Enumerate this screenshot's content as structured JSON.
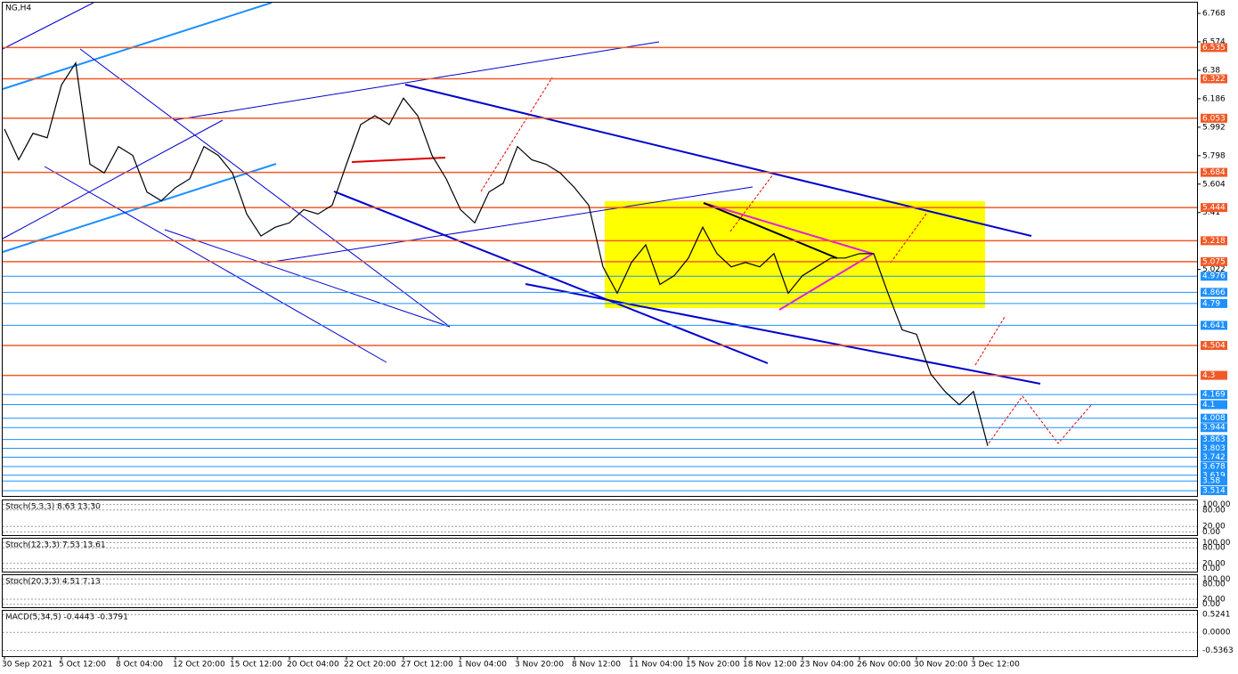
{
  "chart_data": {
    "type": "line",
    "title": "NG,H4",
    "color": "#000000",
    "categories": [
      "30 Sep 2021",
      null,
      null,
      null,
      "5 Oct 12:00",
      null,
      null,
      null,
      "8 Oct 04:00",
      null,
      null,
      null,
      "12 Oct 20:00",
      null,
      null,
      null,
      "15 Oct 12:00",
      null,
      null,
      null,
      "20 Oct 04:00",
      null,
      null,
      null,
      "22 Oct 20:00",
      null,
      null,
      null,
      "27 Oct 12:00",
      null,
      null,
      null,
      "1 Nov 04:00",
      null,
      null,
      null,
      "3 Nov 20:00",
      null,
      null,
      null,
      "8 Nov 12:00",
      null,
      null,
      null,
      "11 Nov 04:00",
      null,
      null,
      null,
      "15 Nov 20:00",
      null,
      null,
      null,
      "18 Nov 12:00",
      null,
      null,
      null,
      "23 Nov 04:00",
      null,
      null,
      null,
      "26 Nov 00:00",
      null,
      null,
      null,
      "30 Nov 20:00",
      null,
      null,
      null,
      "3 Dec 12:00",
      null
    ],
    "values": [
      5.98,
      5.77,
      5.95,
      5.92,
      6.28,
      6.43,
      5.74,
      5.68,
      5.86,
      5.8,
      5.55,
      5.49,
      5.58,
      5.64,
      5.86,
      5.8,
      5.68,
      5.4,
      5.25,
      5.31,
      5.34,
      5.43,
      5.4,
      5.46,
      5.74,
      6.01,
      6.07,
      6.01,
      6.19,
      6.07,
      5.8,
      5.64,
      5.43,
      5.34,
      5.55,
      5.61,
      5.86,
      5.77,
      5.74,
      5.68,
      5.58,
      5.46,
      5.04,
      4.86,
      5.07,
      5.19,
      4.92,
      4.98,
      5.1,
      5.31,
      5.13,
      5.04,
      5.07,
      5.04,
      5.13,
      4.86,
      4.98,
      5.04,
      5.1,
      5.1,
      5.13,
      5.13,
      4.86,
      4.61,
      4.58,
      4.31,
      4.19,
      4.1,
      4.19,
      3.82
    ],
    "ylim": [
      3.478,
      6.841
    ],
    "yticks": [
      6.768,
      6.574,
      6.38,
      6.186,
      5.992,
      5.798,
      5.604,
      5.41,
      5.022
    ],
    "levels": [
      {
        "value": 6.535,
        "color": "#f05a28"
      },
      {
        "value": 6.322,
        "color": "#f05a28"
      },
      {
        "value": 6.053,
        "color": "#f05a28"
      },
      {
        "value": 5.684,
        "color": "#f05a28"
      },
      {
        "value": 5.444,
        "color": "#f05a28"
      },
      {
        "value": 5.218,
        "color": "#f05a28"
      },
      {
        "value": 5.075,
        "color": "#f05a28"
      },
      {
        "value": 4.976,
        "color": "#1e90ff"
      },
      {
        "value": 4.866,
        "color": "#1e90ff"
      },
      {
        "value": 4.79,
        "color": "#1e90ff"
      },
      {
        "value": 4.641,
        "color": "#1e90ff"
      },
      {
        "value": 4.504,
        "color": "#f05a28"
      },
      {
        "value": 4.3,
        "color": "#f05a28"
      },
      {
        "value": 4.169,
        "color": "#1e90ff"
      },
      {
        "value": 4.1,
        "color": "#1e90ff"
      },
      {
        "value": 4.008,
        "color": "#1e90ff"
      },
      {
        "value": 3.944,
        "color": "#1e90ff"
      },
      {
        "value": 3.863,
        "color": "#1e90ff"
      },
      {
        "value": 3.803,
        "color": "#1e90ff"
      },
      {
        "value": 3.742,
        "color": "#1e90ff"
      },
      {
        "value": 3.678,
        "color": "#1e90ff"
      },
      {
        "value": 3.619,
        "color": "#1e90ff"
      },
      {
        "value": 3.58,
        "color": "#1e90ff"
      },
      {
        "value": 3.514,
        "color": "#1e90ff"
      }
    ],
    "panels": [
      {
        "title": "Stoch(5,3,3) 8.63 13.30",
        "ylim": [
          -15,
          115
        ],
        "yticks": [
          {
            "value": 100,
            "label": "100.00"
          },
          {
            "value": 80,
            "label": "80.00"
          },
          {
            "value": 20,
            "label": "20.00"
          },
          {
            "value": 0,
            "label": "0.00"
          }
        ]
      },
      {
        "title": "Stoch(12,3,3) 7.53 13.61",
        "ylim": [
          -15,
          115
        ],
        "yticks": [
          {
            "value": 100,
            "label": "100.00"
          },
          {
            "value": 80,
            "label": "80.00"
          },
          {
            "value": 20,
            "label": "20.00"
          },
          {
            "value": 0,
            "label": "0.00"
          }
        ]
      },
      {
        "title": "Stoch(20,3,3) 4.51 7.13",
        "ylim": [
          -15,
          115
        ],
        "yticks": [
          {
            "value": 100,
            "label": "100.00"
          },
          {
            "value": 80,
            "label": "80.00"
          },
          {
            "value": 20,
            "label": "20.00"
          },
          {
            "value": 0,
            "label": "0.00"
          }
        ]
      },
      {
        "title": "MACD(5,34,5) -0.4443 -0.3791",
        "ylim": [
          -0.73,
          0.635
        ],
        "yticks": [
          0.5241,
          {
            "value": 0,
            "label": "0.0000"
          },
          -0.5363
        ]
      }
    ]
  }
}
